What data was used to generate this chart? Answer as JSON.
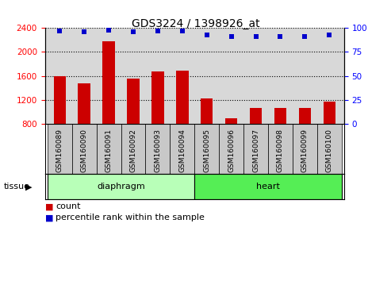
{
  "title": "GDS3224 / 1398926_at",
  "categories": [
    "GSM160089",
    "GSM160090",
    "GSM160091",
    "GSM160092",
    "GSM160093",
    "GSM160094",
    "GSM160095",
    "GSM160096",
    "GSM160097",
    "GSM160098",
    "GSM160099",
    "GSM160100"
  ],
  "bar_values": [
    1600,
    1480,
    2180,
    1560,
    1680,
    1690,
    1220,
    890,
    1060,
    1060,
    1060,
    1175
  ],
  "dot_values": [
    97,
    96,
    98,
    96,
    97,
    97,
    93,
    91,
    91,
    91,
    91,
    93
  ],
  "bar_color": "#cc0000",
  "dot_color": "#0000cc",
  "ylim_left": [
    800,
    2400
  ],
  "ylim_right": [
    0,
    100
  ],
  "yticks_left": [
    800,
    1200,
    1600,
    2000,
    2400
  ],
  "yticks_right": [
    0,
    25,
    50,
    75,
    100
  ],
  "grid_values": [
    1200,
    1600,
    2000
  ],
  "diaphragm_color_light": "#ccffcc",
  "diaphragm_color_dark": "#66ee66",
  "heart_color": "#55dd55",
  "legend_count_label": "count",
  "legend_pct_label": "percentile rank within the sample",
  "tissue_label": "tissue",
  "bar_width": 0.5,
  "plot_bg": "#d8d8d8",
  "tick_bg": "#c8c8c8"
}
